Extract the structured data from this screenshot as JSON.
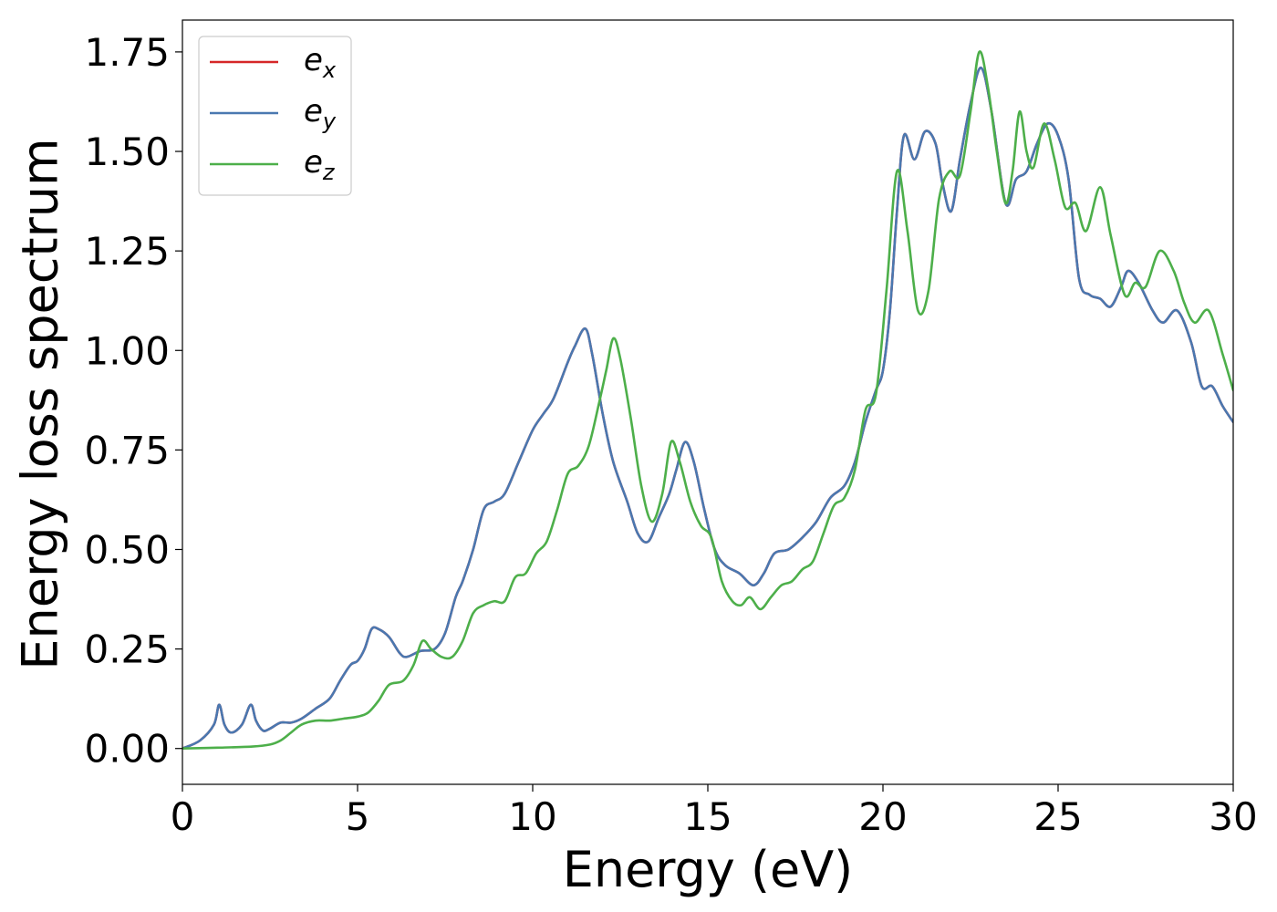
{
  "chart_data": {
    "type": "line",
    "title": "",
    "xlabel": "Energy (eV)",
    "ylabel": "Energy loss spectrum",
    "xlim": [
      0,
      30
    ],
    "ylim": [
      -0.09,
      1.83
    ],
    "xticks": [
      0,
      5,
      10,
      15,
      20,
      25,
      30
    ],
    "xtick_labels": [
      "0",
      "5",
      "10",
      "15",
      "20",
      "25",
      "30"
    ],
    "yticks": [
      0.0,
      0.25,
      0.5,
      0.75,
      1.0,
      1.25,
      1.5,
      1.75
    ],
    "ytick_labels": [
      "0.00",
      "0.25",
      "0.50",
      "0.75",
      "1.00",
      "1.25",
      "1.50",
      "1.75"
    ],
    "grid": false,
    "legend_position": "top-left",
    "series": [
      {
        "name": "e_x",
        "legend_base": "e",
        "legend_sub": "x",
        "color": "#d62728",
        "points": [
          [
            0,
            0
          ],
          [
            0.5,
            0.02
          ],
          [
            0.9,
            0.06
          ],
          [
            1.05,
            0.11
          ],
          [
            1.2,
            0.06
          ],
          [
            1.4,
            0.04
          ],
          [
            1.7,
            0.06
          ],
          [
            1.95,
            0.11
          ],
          [
            2.1,
            0.07
          ],
          [
            2.3,
            0.045
          ],
          [
            2.5,
            0.05
          ],
          [
            2.8,
            0.065
          ],
          [
            3.1,
            0.065
          ],
          [
            3.4,
            0.075
          ],
          [
            3.8,
            0.1
          ],
          [
            4.2,
            0.125
          ],
          [
            4.5,
            0.17
          ],
          [
            4.8,
            0.21
          ],
          [
            5.0,
            0.22
          ],
          [
            5.2,
            0.25
          ],
          [
            5.4,
            0.3
          ],
          [
            5.6,
            0.3
          ],
          [
            5.9,
            0.28
          ],
          [
            6.2,
            0.24
          ],
          [
            6.4,
            0.23
          ],
          [
            6.8,
            0.245
          ],
          [
            7.2,
            0.25
          ],
          [
            7.5,
            0.29
          ],
          [
            7.8,
            0.38
          ],
          [
            8.0,
            0.42
          ],
          [
            8.3,
            0.5
          ],
          [
            8.6,
            0.6
          ],
          [
            8.9,
            0.62
          ],
          [
            9.2,
            0.64
          ],
          [
            9.6,
            0.72
          ],
          [
            10.0,
            0.8
          ],
          [
            10.3,
            0.84
          ],
          [
            10.6,
            0.88
          ],
          [
            11.0,
            0.97
          ],
          [
            11.2,
            1.01
          ],
          [
            11.5,
            1.055
          ],
          [
            11.7,
            0.99
          ],
          [
            12.0,
            0.84
          ],
          [
            12.3,
            0.72
          ],
          [
            12.7,
            0.62
          ],
          [
            13.0,
            0.54
          ],
          [
            13.3,
            0.52
          ],
          [
            13.6,
            0.58
          ],
          [
            13.9,
            0.64
          ],
          [
            14.1,
            0.7
          ],
          [
            14.35,
            0.77
          ],
          [
            14.6,
            0.72
          ],
          [
            14.9,
            0.6
          ],
          [
            15.2,
            0.5
          ],
          [
            15.5,
            0.46
          ],
          [
            15.9,
            0.44
          ],
          [
            16.3,
            0.41
          ],
          [
            16.6,
            0.44
          ],
          [
            16.9,
            0.49
          ],
          [
            17.3,
            0.5
          ],
          [
            17.7,
            0.53
          ],
          [
            18.1,
            0.57
          ],
          [
            18.5,
            0.63
          ],
          [
            18.9,
            0.66
          ],
          [
            19.2,
            0.72
          ],
          [
            19.5,
            0.82
          ],
          [
            19.8,
            0.9
          ],
          [
            20.0,
            0.95
          ],
          [
            20.2,
            1.1
          ],
          [
            20.4,
            1.35
          ],
          [
            20.6,
            1.54
          ],
          [
            20.9,
            1.48
          ],
          [
            21.2,
            1.55
          ],
          [
            21.5,
            1.52
          ],
          [
            21.7,
            1.42
          ],
          [
            21.95,
            1.35
          ],
          [
            22.2,
            1.48
          ],
          [
            22.5,
            1.62
          ],
          [
            22.8,
            1.71
          ],
          [
            23.1,
            1.6
          ],
          [
            23.5,
            1.37
          ],
          [
            23.8,
            1.43
          ],
          [
            24.1,
            1.45
          ],
          [
            24.4,
            1.52
          ],
          [
            24.7,
            1.57
          ],
          [
            25.0,
            1.54
          ],
          [
            25.3,
            1.43
          ],
          [
            25.6,
            1.18
          ],
          [
            25.9,
            1.14
          ],
          [
            26.2,
            1.13
          ],
          [
            26.5,
            1.11
          ],
          [
            26.8,
            1.16
          ],
          [
            27.0,
            1.2
          ],
          [
            27.3,
            1.17
          ],
          [
            27.7,
            1.1
          ],
          [
            28.0,
            1.07
          ],
          [
            28.4,
            1.1
          ],
          [
            28.8,
            1.02
          ],
          [
            29.1,
            0.91
          ],
          [
            29.4,
            0.91
          ],
          [
            29.7,
            0.86
          ],
          [
            30.0,
            0.82
          ]
        ]
      },
      {
        "name": "e_y",
        "legend_base": "e",
        "legend_sub": "y",
        "color": "#4a78b0",
        "points": [
          [
            0,
            0
          ],
          [
            0.5,
            0.02
          ],
          [
            0.9,
            0.06
          ],
          [
            1.05,
            0.11
          ],
          [
            1.2,
            0.06
          ],
          [
            1.4,
            0.04
          ],
          [
            1.7,
            0.06
          ],
          [
            1.95,
            0.11
          ],
          [
            2.1,
            0.07
          ],
          [
            2.3,
            0.045
          ],
          [
            2.5,
            0.05
          ],
          [
            2.8,
            0.065
          ],
          [
            3.1,
            0.065
          ],
          [
            3.4,
            0.075
          ],
          [
            3.8,
            0.1
          ],
          [
            4.2,
            0.125
          ],
          [
            4.5,
            0.17
          ],
          [
            4.8,
            0.21
          ],
          [
            5.0,
            0.22
          ],
          [
            5.2,
            0.25
          ],
          [
            5.4,
            0.3
          ],
          [
            5.6,
            0.3
          ],
          [
            5.9,
            0.28
          ],
          [
            6.2,
            0.24
          ],
          [
            6.4,
            0.23
          ],
          [
            6.8,
            0.245
          ],
          [
            7.2,
            0.25
          ],
          [
            7.5,
            0.29
          ],
          [
            7.8,
            0.38
          ],
          [
            8.0,
            0.42
          ],
          [
            8.3,
            0.5
          ],
          [
            8.6,
            0.6
          ],
          [
            8.9,
            0.62
          ],
          [
            9.2,
            0.64
          ],
          [
            9.6,
            0.72
          ],
          [
            10.0,
            0.8
          ],
          [
            10.3,
            0.84
          ],
          [
            10.6,
            0.88
          ],
          [
            11.0,
            0.97
          ],
          [
            11.2,
            1.01
          ],
          [
            11.5,
            1.055
          ],
          [
            11.7,
            0.99
          ],
          [
            12.0,
            0.84
          ],
          [
            12.3,
            0.72
          ],
          [
            12.7,
            0.62
          ],
          [
            13.0,
            0.54
          ],
          [
            13.3,
            0.52
          ],
          [
            13.6,
            0.58
          ],
          [
            13.9,
            0.64
          ],
          [
            14.1,
            0.7
          ],
          [
            14.35,
            0.77
          ],
          [
            14.6,
            0.72
          ],
          [
            14.9,
            0.6
          ],
          [
            15.2,
            0.5
          ],
          [
            15.5,
            0.46
          ],
          [
            15.9,
            0.44
          ],
          [
            16.3,
            0.41
          ],
          [
            16.6,
            0.44
          ],
          [
            16.9,
            0.49
          ],
          [
            17.3,
            0.5
          ],
          [
            17.7,
            0.53
          ],
          [
            18.1,
            0.57
          ],
          [
            18.5,
            0.63
          ],
          [
            18.9,
            0.66
          ],
          [
            19.2,
            0.72
          ],
          [
            19.5,
            0.82
          ],
          [
            19.8,
            0.9
          ],
          [
            20.0,
            0.95
          ],
          [
            20.2,
            1.1
          ],
          [
            20.4,
            1.35
          ],
          [
            20.6,
            1.54
          ],
          [
            20.9,
            1.48
          ],
          [
            21.2,
            1.55
          ],
          [
            21.5,
            1.52
          ],
          [
            21.7,
            1.42
          ],
          [
            21.95,
            1.35
          ],
          [
            22.2,
            1.48
          ],
          [
            22.5,
            1.62
          ],
          [
            22.8,
            1.71
          ],
          [
            23.1,
            1.6
          ],
          [
            23.5,
            1.37
          ],
          [
            23.8,
            1.43
          ],
          [
            24.1,
            1.45
          ],
          [
            24.4,
            1.52
          ],
          [
            24.7,
            1.57
          ],
          [
            25.0,
            1.54
          ],
          [
            25.3,
            1.43
          ],
          [
            25.6,
            1.18
          ],
          [
            25.9,
            1.14
          ],
          [
            26.2,
            1.13
          ],
          [
            26.5,
            1.11
          ],
          [
            26.8,
            1.16
          ],
          [
            27.0,
            1.2
          ],
          [
            27.3,
            1.17
          ],
          [
            27.7,
            1.1
          ],
          [
            28.0,
            1.07
          ],
          [
            28.4,
            1.1
          ],
          [
            28.8,
            1.02
          ],
          [
            29.1,
            0.91
          ],
          [
            29.4,
            0.91
          ],
          [
            29.7,
            0.86
          ],
          [
            30.0,
            0.82
          ]
        ]
      },
      {
        "name": "e_z",
        "legend_base": "e",
        "legend_sub": "z",
        "color": "#4daf4a",
        "points": [
          [
            0,
            0
          ],
          [
            1.0,
            0.002
          ],
          [
            2.0,
            0.005
          ],
          [
            2.5,
            0.01
          ],
          [
            2.8,
            0.02
          ],
          [
            3.1,
            0.04
          ],
          [
            3.4,
            0.06
          ],
          [
            3.8,
            0.07
          ],
          [
            4.2,
            0.07
          ],
          [
            4.6,
            0.075
          ],
          [
            5.0,
            0.08
          ],
          [
            5.3,
            0.09
          ],
          [
            5.6,
            0.12
          ],
          [
            5.9,
            0.16
          ],
          [
            6.3,
            0.17
          ],
          [
            6.6,
            0.21
          ],
          [
            6.85,
            0.27
          ],
          [
            7.1,
            0.25
          ],
          [
            7.4,
            0.23
          ],
          [
            7.7,
            0.23
          ],
          [
            8.0,
            0.27
          ],
          [
            8.3,
            0.34
          ],
          [
            8.6,
            0.36
          ],
          [
            8.9,
            0.37
          ],
          [
            9.2,
            0.37
          ],
          [
            9.5,
            0.43
          ],
          [
            9.8,
            0.44
          ],
          [
            10.1,
            0.49
          ],
          [
            10.4,
            0.52
          ],
          [
            10.7,
            0.6
          ],
          [
            11.0,
            0.69
          ],
          [
            11.3,
            0.71
          ],
          [
            11.6,
            0.76
          ],
          [
            11.9,
            0.87
          ],
          [
            12.1,
            0.95
          ],
          [
            12.3,
            1.03
          ],
          [
            12.5,
            0.98
          ],
          [
            12.8,
            0.83
          ],
          [
            13.1,
            0.66
          ],
          [
            13.4,
            0.57
          ],
          [
            13.7,
            0.64
          ],
          [
            13.95,
            0.77
          ],
          [
            14.2,
            0.72
          ],
          [
            14.5,
            0.62
          ],
          [
            14.8,
            0.56
          ],
          [
            15.1,
            0.53
          ],
          [
            15.4,
            0.42
          ],
          [
            15.7,
            0.37
          ],
          [
            15.95,
            0.36
          ],
          [
            16.2,
            0.38
          ],
          [
            16.5,
            0.35
          ],
          [
            16.8,
            0.38
          ],
          [
            17.1,
            0.41
          ],
          [
            17.4,
            0.42
          ],
          [
            17.7,
            0.45
          ],
          [
            18.0,
            0.47
          ],
          [
            18.3,
            0.54
          ],
          [
            18.6,
            0.61
          ],
          [
            18.9,
            0.63
          ],
          [
            19.2,
            0.7
          ],
          [
            19.5,
            0.85
          ],
          [
            19.8,
            0.89
          ],
          [
            20.1,
            1.15
          ],
          [
            20.4,
            1.45
          ],
          [
            20.7,
            1.3
          ],
          [
            21.0,
            1.1
          ],
          [
            21.3,
            1.15
          ],
          [
            21.6,
            1.38
          ],
          [
            21.9,
            1.45
          ],
          [
            22.2,
            1.44
          ],
          [
            22.5,
            1.6
          ],
          [
            22.75,
            1.75
          ],
          [
            23.0,
            1.66
          ],
          [
            23.25,
            1.5
          ],
          [
            23.5,
            1.37
          ],
          [
            23.7,
            1.45
          ],
          [
            23.9,
            1.6
          ],
          [
            24.1,
            1.5
          ],
          [
            24.3,
            1.46
          ],
          [
            24.6,
            1.57
          ],
          [
            24.9,
            1.48
          ],
          [
            25.2,
            1.36
          ],
          [
            25.5,
            1.37
          ],
          [
            25.8,
            1.3
          ],
          [
            26.2,
            1.41
          ],
          [
            26.5,
            1.29
          ],
          [
            26.9,
            1.14
          ],
          [
            27.2,
            1.17
          ],
          [
            27.5,
            1.16
          ],
          [
            27.9,
            1.25
          ],
          [
            28.3,
            1.2
          ],
          [
            28.6,
            1.12
          ],
          [
            28.9,
            1.07
          ],
          [
            29.3,
            1.1
          ],
          [
            29.7,
            0.99
          ],
          [
            30.0,
            0.9
          ]
        ]
      }
    ]
  }
}
